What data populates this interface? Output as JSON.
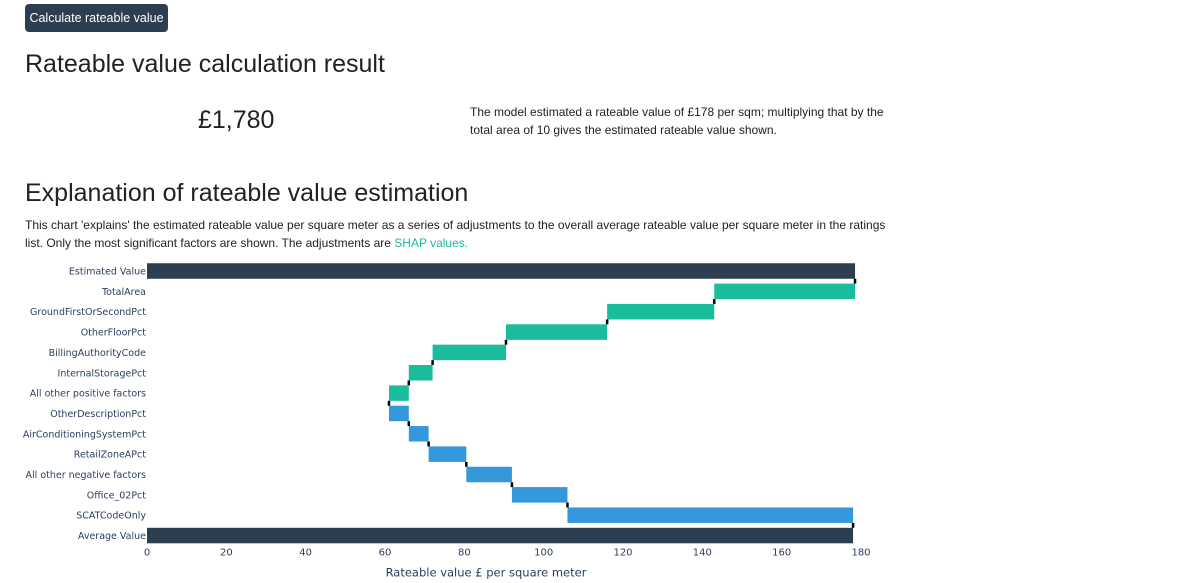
{
  "button": {
    "label": "Calculate rateable value"
  },
  "result": {
    "heading": "Rateable value calculation result",
    "value": "£1,780",
    "note": "The model estimated a rateable value of £178 per sqm; multiplying that by the total area of 10 gives the estimated rateable value shown."
  },
  "explanation": {
    "heading": "Explanation of rateable value estimation",
    "text": "This chart 'explains' the estimated rateable value per square meter as a series of adjustments to the overall average rateable value per square meter in the ratings list. Only the most significant factors are shown. The adjustments are ",
    "link_text": "SHAP values."
  },
  "colors": {
    "total": "#2c3e50",
    "positive": "#1abc9c",
    "negative": "#3498db",
    "connector": "#000000",
    "axis_text": "#2a3f5f"
  },
  "chart_data": {
    "type": "bar",
    "orientation": "horizontal-waterfall",
    "xlabel": "Rateable value £ per square meter",
    "xlim": [
      0,
      180
    ],
    "xticks": [
      0,
      20,
      40,
      60,
      80,
      100,
      120,
      140,
      160,
      180
    ],
    "grid": false,
    "rows": [
      {
        "label": "Estimated Value",
        "kind": "total",
        "start": 0,
        "end": 178.5
      },
      {
        "label": "TotalArea",
        "kind": "positive",
        "start": 143,
        "end": 178.5
      },
      {
        "label": "GroundFirstOrSecondPct",
        "kind": "positive",
        "start": 116,
        "end": 143
      },
      {
        "label": "OtherFloorPct",
        "kind": "positive",
        "start": 90.5,
        "end": 116
      },
      {
        "label": "BillingAuthorityCode",
        "kind": "positive",
        "start": 72,
        "end": 90.5
      },
      {
        "label": "InternalStoragePct",
        "kind": "positive",
        "start": 66,
        "end": 72
      },
      {
        "label": "All other positive factors",
        "kind": "positive",
        "start": 61,
        "end": 66
      },
      {
        "label": "OtherDescriptionPct",
        "kind": "negative",
        "start": 61,
        "end": 66
      },
      {
        "label": "AirConditioningSystemPct",
        "kind": "negative",
        "start": 66,
        "end": 71
      },
      {
        "label": "RetailZoneAPct",
        "kind": "negative",
        "start": 71,
        "end": 80.5
      },
      {
        "label": "All other negative factors",
        "kind": "negative",
        "start": 80.5,
        "end": 92
      },
      {
        "label": "Office_02Pct",
        "kind": "negative",
        "start": 92,
        "end": 106
      },
      {
        "label": "SCATCodeOnly",
        "kind": "negative",
        "start": 106,
        "end": 178
      },
      {
        "label": "Average Value",
        "kind": "total",
        "start": 0,
        "end": 178
      }
    ]
  }
}
